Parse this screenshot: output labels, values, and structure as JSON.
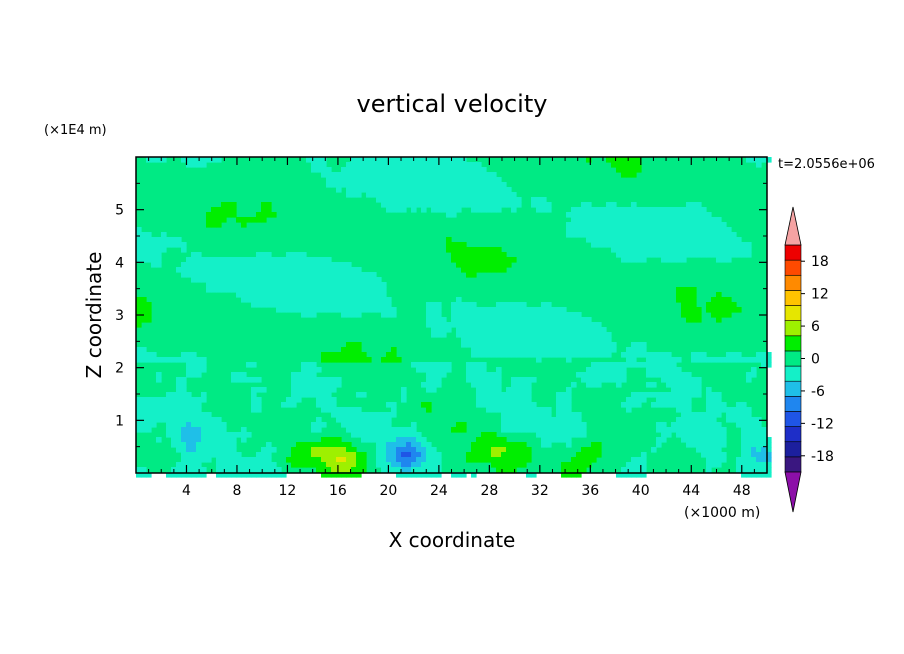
{
  "chart_data": {
    "type": "heatmap",
    "title": "vertical velocity",
    "xlabel": "X coordinate",
    "ylabel": "Z coordinate",
    "x_unit": "(×1000 m)",
    "y_unit": "(×1E4 m)",
    "time_label": "t=2.0556e+06",
    "xlim": [
      0,
      50
    ],
    "ylim": [
      0,
      6
    ],
    "x_ticks": [
      4,
      8,
      12,
      16,
      20,
      24,
      28,
      32,
      36,
      40,
      44,
      48
    ],
    "y_ticks": [
      1,
      2,
      3,
      4,
      5
    ],
    "colorbar": {
      "levels": [
        -21,
        -18,
        -15,
        -12,
        -9,
        -6,
        -3,
        0,
        3,
        6,
        9,
        12,
        15,
        18,
        21
      ],
      "labels": [
        18,
        12,
        6,
        0,
        -6,
        -12,
        -18
      ],
      "colors": [
        "#3a1780",
        "#1c1f9e",
        "#1e2ec8",
        "#1f55e6",
        "#1f86ef",
        "#1fbfe8",
        "#14f0c8",
        "#00ea84",
        "#00ee00",
        "#9ef000",
        "#e6e600",
        "#ffc400",
        "#ff8a00",
        "#ff4a00",
        "#ee0000"
      ],
      "over_color": "#f5a3a3",
      "under_color": "#8c0fa8"
    },
    "features": [
      {
        "x": 15.6,
        "z": 0.25,
        "w": 3.2,
        "peak": 6
      },
      {
        "x": 28.6,
        "z": 0.4,
        "w": 2.6,
        "peak": 5
      },
      {
        "x": 35.8,
        "z": 0.18,
        "w": 2.4,
        "peak": 4
      },
      {
        "x": 21.2,
        "z": 0.32,
        "w": 1.8,
        "peak": -7
      },
      {
        "x": 49.0,
        "z": 0.3,
        "w": 1.6,
        "peak": -4
      },
      {
        "x": 4.5,
        "z": 0.55,
        "w": 1.4,
        "peak": -3
      },
      {
        "x": 45.5,
        "z": 0.45,
        "w": 1.3,
        "peak": -3
      },
      {
        "x": 47.5,
        "z": 0.6,
        "w": 1.0,
        "peak": 2.5
      }
    ]
  }
}
